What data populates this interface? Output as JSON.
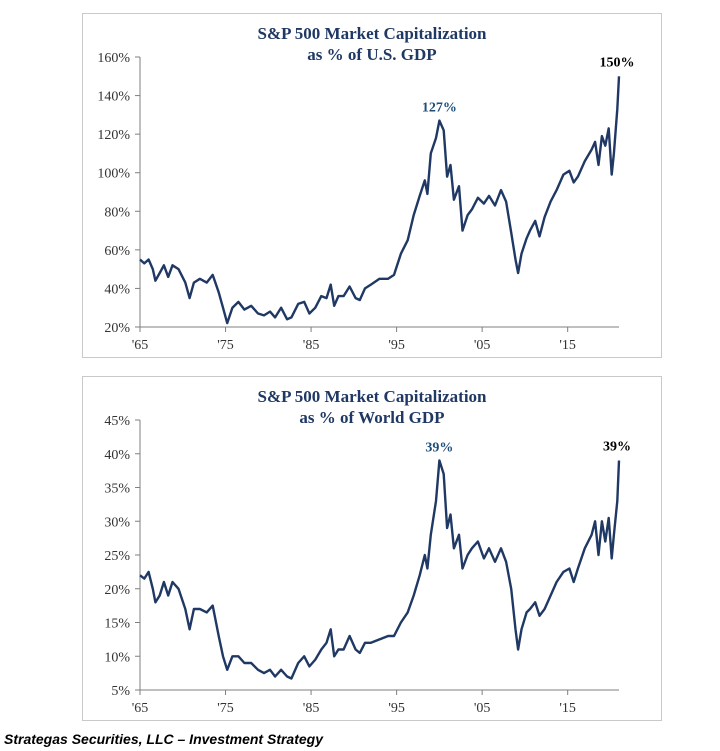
{
  "chart_data": [
    {
      "type": "line",
      "title": [
        "S&P 500 Market Capitalization",
        "as % of U.S. GDP"
      ],
      "xlabel": "",
      "ylabel": "",
      "xlim": [
        1965,
        2021
      ],
      "ylim": [
        20,
        160
      ],
      "yticks": [
        20,
        40,
        60,
        80,
        100,
        120,
        140,
        160
      ],
      "ytick_labels": [
        "20%",
        "40%",
        "60%",
        "80%",
        "100%",
        "120%",
        "140%",
        "160%"
      ],
      "xticks": [
        1965,
        1975,
        1985,
        1995,
        2005,
        2015
      ],
      "xtick_labels": [
        "'65",
        "'75",
        "'85",
        "'95",
        "'05",
        "'15"
      ],
      "peak_label": "127%",
      "peak_x": 2000,
      "peak_y": 127,
      "end_label": "150%",
      "end_x": 2021,
      "end_y": 150,
      "series": [
        {
          "name": "S&P 500 Market Cap % of U.S. GDP",
          "x": [
            1965,
            1965.5,
            1966,
            1966.5,
            1966.8,
            1967.3,
            1967.8,
            1968.3,
            1968.8,
            1969.5,
            1970.3,
            1970.8,
            1971.3,
            1972,
            1972.8,
            1973.5,
            1974.2,
            1974.7,
            1975.2,
            1975.8,
            1976.5,
            1977.2,
            1978,
            1978.8,
            1979.5,
            1980.2,
            1980.8,
            1981.5,
            1982.2,
            1982.7,
            1983.5,
            1984.2,
            1984.8,
            1985.5,
            1986.2,
            1986.8,
            1987.3,
            1987.7,
            1988.2,
            1988.8,
            1989.5,
            1990.2,
            1990.7,
            1991.3,
            1992,
            1993,
            1994,
            1994.7,
            1995.5,
            1996.3,
            1997,
            1997.7,
            1998.3,
            1998.6,
            1999,
            1999.6,
            2000,
            2000.5,
            2000.9,
            2001.3,
            2001.7,
            2002.3,
            2002.7,
            2003.3,
            2003.8,
            2004.5,
            2005.2,
            2005.8,
            2006.5,
            2007.2,
            2007.8,
            2008.4,
            2008.9,
            2009.2,
            2009.6,
            2010.2,
            2010.6,
            2011.2,
            2011.7,
            2012.3,
            2013,
            2013.7,
            2014.5,
            2015.2,
            2015.7,
            2016.2,
            2017,
            2017.8,
            2018.2,
            2018.6,
            2019,
            2019.4,
            2019.8,
            2020.15,
            2020.4,
            2020.8,
            2021
          ],
          "values": [
            55,
            53,
            55,
            50,
            44,
            48,
            52,
            46,
            52,
            50,
            43,
            35,
            43,
            45,
            43,
            47,
            38,
            30,
            22,
            30,
            33,
            29,
            31,
            27,
            26,
            28,
            25,
            30,
            24,
            25,
            32,
            33,
            27,
            30,
            36,
            35,
            42,
            31,
            36,
            36,
            41,
            35,
            34,
            40,
            42,
            45,
            45,
            47,
            58,
            65,
            78,
            88,
            96,
            89,
            110,
            118,
            127,
            122,
            98,
            104,
            86,
            93,
            70,
            78,
            81,
            87,
            84,
            88,
            83,
            91,
            85,
            69,
            55,
            48,
            58,
            66,
            70,
            75,
            67,
            77,
            85,
            91,
            99,
            101,
            95,
            98,
            106,
            112,
            116,
            104,
            119,
            114,
            123,
            99,
            110,
            133,
            150
          ]
        }
      ]
    },
    {
      "type": "line",
      "title": [
        "S&P 500 Market Capitalization",
        "as % of World GDP"
      ],
      "xlabel": "",
      "ylabel": "",
      "xlim": [
        1965,
        2021
      ],
      "ylim": [
        5,
        45
      ],
      "yticks": [
        5,
        10,
        15,
        20,
        25,
        30,
        35,
        40,
        45
      ],
      "ytick_labels": [
        "5%",
        "10%",
        "15%",
        "20%",
        "25%",
        "30%",
        "35%",
        "40%",
        "45%"
      ],
      "xticks": [
        1965,
        1975,
        1985,
        1995,
        2005,
        2015
      ],
      "xtick_labels": [
        "'65",
        "'75",
        "'85",
        "'95",
        "'05",
        "'15"
      ],
      "peak_label": "39%",
      "peak_x": 2000,
      "peak_y": 39,
      "end_label": "39%",
      "end_x": 2021,
      "end_y": 39,
      "series": [
        {
          "name": "S&P 500 Market Cap % of World GDP",
          "x": [
            1965,
            1965.5,
            1966,
            1966.5,
            1966.8,
            1967.3,
            1967.8,
            1968.3,
            1968.8,
            1969.5,
            1970.3,
            1970.8,
            1971.3,
            1972,
            1972.8,
            1973.5,
            1974.2,
            1974.7,
            1975.2,
            1975.8,
            1976.5,
            1977.2,
            1978,
            1978.8,
            1979.5,
            1980.2,
            1980.8,
            1981.5,
            1982.2,
            1982.7,
            1983.5,
            1984.2,
            1984.8,
            1985.5,
            1986.2,
            1986.8,
            1987.3,
            1987.7,
            1988.2,
            1988.8,
            1989.5,
            1990.2,
            1990.7,
            1991.3,
            1992,
            1993,
            1994,
            1994.7,
            1995.5,
            1996.3,
            1997,
            1997.7,
            1998.3,
            1998.6,
            1999,
            1999.6,
            2000,
            2000.5,
            2000.9,
            2001.3,
            2001.7,
            2002.3,
            2002.7,
            2003.3,
            2003.8,
            2004.5,
            2005.2,
            2005.8,
            2006.5,
            2007.2,
            2007.8,
            2008.4,
            2008.9,
            2009.2,
            2009.6,
            2010.2,
            2010.6,
            2011.2,
            2011.7,
            2012.3,
            2013,
            2013.7,
            2014.5,
            2015.2,
            2015.7,
            2016.2,
            2017,
            2017.8,
            2018.2,
            2018.6,
            2019,
            2019.4,
            2019.8,
            2020.15,
            2020.4,
            2020.8,
            2021
          ],
          "values": [
            22,
            21.5,
            22.5,
            20,
            18,
            19,
            21,
            19,
            21,
            20,
            17,
            14,
            17,
            17,
            16.5,
            17.5,
            13,
            10,
            8,
            10,
            10,
            9,
            9,
            8,
            7.5,
            8,
            7,
            8,
            7,
            6.7,
            9,
            10,
            8.5,
            9.5,
            11,
            12,
            14,
            10,
            11,
            11,
            13,
            11,
            10.5,
            12,
            12,
            12.5,
            13,
            13,
            15,
            16.5,
            19,
            22,
            25,
            23,
            28,
            33,
            39,
            37,
            29,
            31,
            26,
            28,
            23,
            25,
            26,
            27,
            24.5,
            26,
            24,
            26,
            24,
            20,
            14,
            11,
            14,
            16.5,
            17,
            18,
            16,
            17,
            19,
            21,
            22.5,
            23,
            21,
            23,
            26,
            28,
            30,
            25,
            30,
            27,
            30.5,
            24.5,
            28,
            33,
            39
          ]
        }
      ]
    }
  ],
  "footer": "Strategas Securities, LLC – Investment Strategy",
  "colors": {
    "line": "#1f3864",
    "title": "#1f3864",
    "peak": "#1f4e79",
    "axis": "#7f7f7f"
  }
}
